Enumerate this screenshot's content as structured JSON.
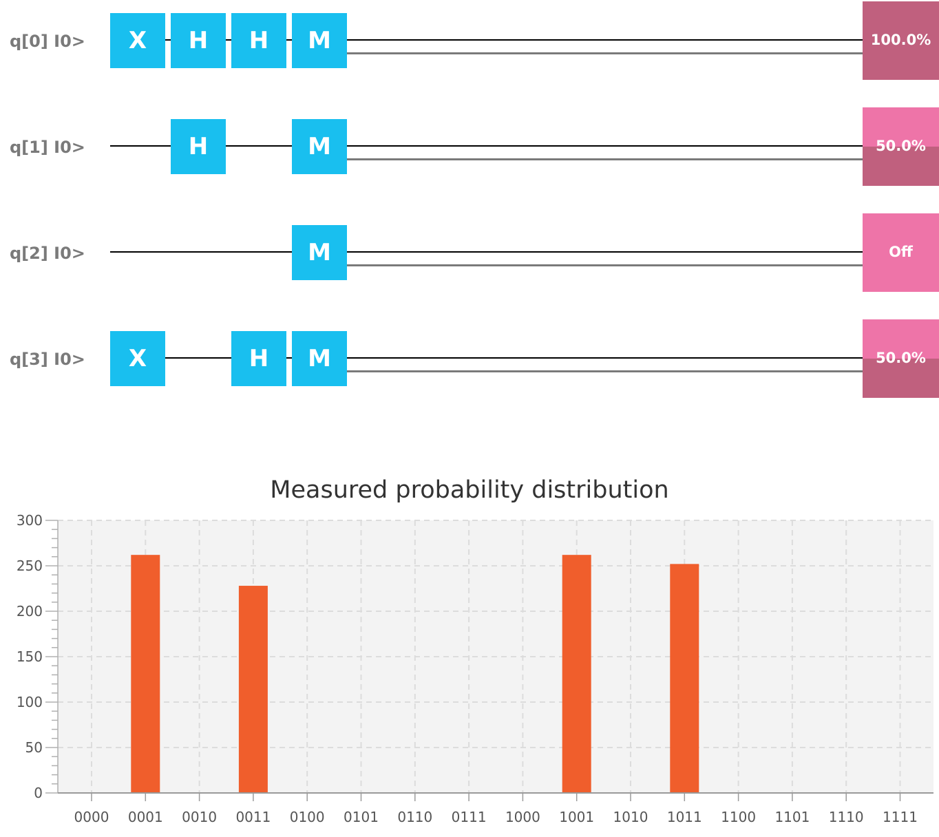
{
  "circuit": {
    "qubits": [
      {
        "label": "q[0] I0>",
        "gates": [
          "X",
          "H",
          "H",
          "M"
        ],
        "result": "100.0%",
        "measure_one_fraction": 1.0
      },
      {
        "label": "q[1] I0>",
        "gates": [
          "H",
          "M"
        ],
        "result": "50.0%",
        "measure_one_fraction": 0.5
      },
      {
        "label": "q[2] I0>",
        "gates": [
          "M"
        ],
        "result": "Off",
        "measure_one_fraction": 0.0
      },
      {
        "label": "q[3] I0>",
        "gates": [
          "X",
          "H",
          "M"
        ],
        "result": "50.0%",
        "measure_one_fraction": 0.5
      }
    ]
  },
  "colors": {
    "gate": "#19bfef",
    "bar": "#f05e2c",
    "prob_light": "#ee74a8",
    "prob_dark": "#c0607e",
    "plot_bg": "#f3f3f3"
  },
  "chart_data": {
    "type": "bar",
    "title": "Measured probability distribution",
    "xlabel": "",
    "ylabel": "",
    "categories": [
      "0000",
      "0001",
      "0010",
      "0011",
      "0100",
      "0101",
      "0110",
      "0111",
      "1000",
      "1001",
      "1010",
      "1011",
      "1100",
      "1101",
      "1110",
      "1111"
    ],
    "values": [
      0,
      262,
      0,
      228,
      0,
      0,
      0,
      0,
      0,
      262,
      0,
      252,
      0,
      0,
      0,
      0
    ],
    "ylim": [
      0,
      300
    ],
    "yticks": [
      0,
      50,
      100,
      150,
      200,
      250,
      300
    ],
    "grid": true
  }
}
